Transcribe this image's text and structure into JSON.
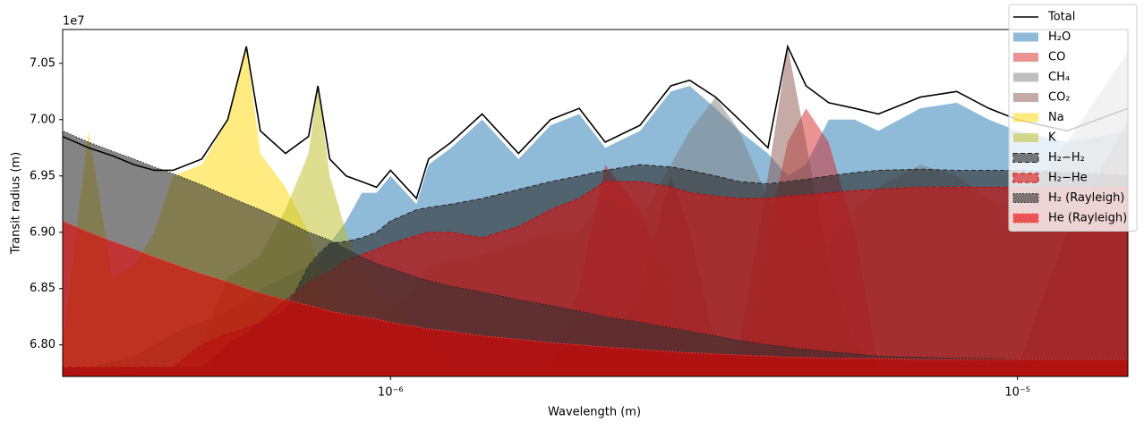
{
  "chart_data": {
    "type": "area",
    "xscale": "log",
    "xlabel": "Wavelength (m)",
    "ylabel": "Transit radius (m)",
    "y_offset_label": "1e7",
    "legend": "upper right",
    "xlim": [
      3e-07,
      1.5e-05
    ],
    "ylim": [
      67720000,
      70800000
    ],
    "xticks": [
      {
        "value": 1e-06,
        "label": "10⁻⁶"
      },
      {
        "value": 1e-05,
        "label": "10⁻⁵"
      }
    ],
    "yticks": [
      {
        "value": 68000000,
        "label": "6.80"
      },
      {
        "value": 68500000,
        "label": "6.85"
      },
      {
        "value": 69000000,
        "label": "6.90"
      },
      {
        "value": 69500000,
        "label": "6.95"
      },
      {
        "value": 70000000,
        "label": "7.00"
      },
      {
        "value": 70500000,
        "label": "7.05"
      }
    ],
    "x": [
      3e-07,
      3.3e-07,
      3.6e-07,
      3.9e-07,
      4.2e-07,
      4.5e-07,
      5e-07,
      5.5e-07,
      5.89e-07,
      6.2e-07,
      6.8e-07,
      7.4e-07,
      7.66e-07,
      8e-07,
      8.5e-07,
      9e-07,
      9.5e-07,
      1e-06,
      1.1e-06,
      1.15e-06,
      1.25e-06,
      1.4e-06,
      1.6e-06,
      1.8e-06,
      2e-06,
      2.2e-06,
      2.5e-06,
      2.8e-06,
      3e-06,
      3.3e-06,
      3.6e-06,
      4e-06,
      4.3e-06,
      4.6e-06,
      5e-06,
      5.5e-06,
      6e-06,
      7e-06,
      8e-06,
      9e-06,
      1e-05,
      1.2e-05,
      1.5e-05
    ],
    "series": [
      {
        "name": "Total",
        "type": "line",
        "color": "#000000",
        "values": [
          69850000,
          69750000,
          69680000,
          69600000,
          69550000,
          69550000,
          69650000,
          70000000,
          70650000,
          69900000,
          69700000,
          69850000,
          70300000,
          69650000,
          69500000,
          69450000,
          69400000,
          69550000,
          69300000,
          69650000,
          69800000,
          70050000,
          69700000,
          70000000,
          70100000,
          69800000,
          69950000,
          70300000,
          70350000,
          70200000,
          70000000,
          69750000,
          70650000,
          70300000,
          70150000,
          70100000,
          70050000,
          70200000,
          70250000,
          70100000,
          70000000,
          69900000,
          70100000
        ]
      },
      {
        "name": "H₂O",
        "type": "area",
        "color": "rgba(31,119,180,0.5)",
        "values": [
          67800000,
          67800000,
          67850000,
          67900000,
          68000000,
          68100000,
          68200000,
          68300000,
          68400000,
          68500000,
          68600000,
          68700000,
          68750000,
          68900000,
          69100000,
          69350000,
          69350000,
          69500000,
          69250000,
          69600000,
          69750000,
          70000000,
          69650000,
          69950000,
          70050000,
          69750000,
          69900000,
          70250000,
          70300000,
          70100000,
          69900000,
          69700000,
          69500000,
          69600000,
          70000000,
          70000000,
          69900000,
          70100000,
          70150000,
          70000000,
          69900000,
          69800000,
          69900000
        ]
      },
      {
        "name": "CO",
        "type": "area",
        "color": "rgba(214,39,40,0.5)",
        "values": [
          67800000,
          67800000,
          67800000,
          67800000,
          67800000,
          67800000,
          67800000,
          67800000,
          67800000,
          67800000,
          67800000,
          67800000,
          67800000,
          67800000,
          67800000,
          67800000,
          67800000,
          67800000,
          67800000,
          67800000,
          67800000,
          67800000,
          67800000,
          67800000,
          68500000,
          69600000,
          69200000,
          68500000,
          67800000,
          67800000,
          67800000,
          69000000,
          69800000,
          70100000,
          69800000,
          69000000,
          67800000,
          67800000,
          67800000,
          67800000,
          67800000,
          67800000,
          67800000
        ]
      },
      {
        "name": "CH₄",
        "type": "area",
        "color": "rgba(127,127,127,0.5)",
        "values": [
          67800000,
          67800000,
          67800000,
          67800000,
          67800000,
          67800000,
          67800000,
          67800000,
          67800000,
          67800000,
          67800000,
          67800000,
          67800000,
          67800000,
          68000000,
          68200000,
          68250000,
          68300000,
          68500000,
          68700000,
          68750000,
          68800000,
          68900000,
          69000000,
          69000000,
          69300000,
          69100000,
          69600000,
          69900000,
          70200000,
          69900000,
          69300000,
          69000000,
          68800000,
          68900000,
          69200000,
          69400000,
          69600000,
          69500000,
          69300000,
          69200000,
          69800000,
          70600000
        ]
      },
      {
        "name": "CO₂",
        "type": "area",
        "color": "rgba(140,86,75,0.5)",
        "values": [
          67800000,
          67800000,
          67800000,
          67800000,
          67800000,
          67800000,
          67800000,
          67800000,
          67800000,
          67800000,
          67800000,
          67800000,
          67800000,
          67800000,
          67800000,
          67800000,
          67800000,
          67800000,
          67800000,
          67800000,
          67800000,
          67800000,
          67800000,
          67800000,
          67800000,
          67800000,
          68500000,
          69500000,
          69000000,
          68000000,
          68000000,
          69500000,
          70650000,
          69800000,
          68700000,
          68000000,
          67800000,
          67800000,
          67800000,
          67800000,
          67800000,
          69000000,
          70000000
        ]
      },
      {
        "name": "Na",
        "type": "area",
        "color": "rgba(255,215,0,0.5)",
        "values": [
          68000000,
          69900000,
          68600000,
          68700000,
          69000000,
          69500000,
          69600000,
          70000000,
          70650000,
          69700000,
          69400000,
          69000000,
          68700000,
          68400000,
          68100000,
          67800000,
          67800000,
          67800000,
          67800000,
          67800000,
          67800000,
          67800000,
          67800000,
          67800000,
          67800000,
          67800000,
          67800000,
          67800000,
          67800000,
          67800000,
          67800000,
          67800000,
          67800000,
          67800000,
          67800000,
          67800000,
          67800000,
          67800000,
          67800000,
          67800000,
          67800000,
          67800000,
          67800000
        ]
      },
      {
        "name": "K",
        "type": "area",
        "color": "rgba(188,189,34,0.5)",
        "values": [
          67800000,
          67800000,
          67800000,
          67800000,
          67800000,
          67800000,
          68000000,
          68600000,
          68700000,
          68800000,
          69200000,
          69700000,
          70300000,
          69500000,
          69000000,
          68600000,
          68500000,
          68400000,
          68200000,
          68000000,
          67800000,
          67800000,
          67800000,
          67800000,
          67800000,
          67800000,
          67800000,
          67800000,
          67800000,
          67800000,
          67800000,
          67800000,
          67800000,
          67800000,
          67800000,
          67800000,
          67800000,
          67800000,
          67800000,
          67800000,
          67800000,
          67800000,
          67800000
        ]
      },
      {
        "name": "H₂−H₂",
        "type": "area",
        "color": "rgba(40,40,40,0.6)",
        "edgecolor": "#222222",
        "linestyle": "dashed",
        "values": [
          67800000,
          67800000,
          67800000,
          67800000,
          67800000,
          67800000,
          67800000,
          68000000,
          68100000,
          68200000,
          68300000,
          68700000,
          68800000,
          68900000,
          68920000,
          68950000,
          69000000,
          69100000,
          69200000,
          69220000,
          69250000,
          69300000,
          69380000,
          69450000,
          69500000,
          69550000,
          69600000,
          69580000,
          69550000,
          69500000,
          69450000,
          69430000,
          69450000,
          69470000,
          69500000,
          69530000,
          69550000,
          69560000,
          69550000,
          69550000,
          69550000,
          69530000,
          69500000
        ]
      },
      {
        "name": "H₂−He",
        "type": "area",
        "color": "rgba(220,20,20,0.6)",
        "edgecolor": "#cc0000",
        "linestyle": "dashed",
        "values": [
          67800000,
          67800000,
          67800000,
          67800000,
          67800000,
          67800000,
          68000000,
          68100000,
          68150000,
          68200000,
          68400000,
          68550000,
          68600000,
          68650000,
          68750000,
          68800000,
          68850000,
          68900000,
          68970000,
          69000000,
          69000000,
          68950000,
          69050000,
          69200000,
          69300000,
          69450000,
          69450000,
          69400000,
          69350000,
          69320000,
          69300000,
          69300000,
          69320000,
          69330000,
          69350000,
          69370000,
          69380000,
          69400000,
          69400000,
          69400000,
          69400000,
          69400000,
          69400000
        ]
      },
      {
        "name": "H₂ (Rayleigh)",
        "type": "area",
        "color": "rgba(50,50,50,0.6)",
        "edgecolor": "#222222",
        "linestyle": "dotted",
        "values": [
          69900000,
          69800000,
          69720000,
          69650000,
          69580000,
          69520000,
          69420000,
          69320000,
          69250000,
          69200000,
          69100000,
          69000000,
          68970000,
          68930000,
          68850000,
          68780000,
          68720000,
          68680000,
          68600000,
          68570000,
          68520000,
          68470000,
          68400000,
          68350000,
          68300000,
          68250000,
          68200000,
          68150000,
          68120000,
          68080000,
          68040000,
          68000000,
          67980000,
          67960000,
          67940000,
          67920000,
          67900000,
          67890000,
          67880000,
          67880000,
          67870000,
          67870000,
          67870000
        ]
      },
      {
        "name": "He (Rayleigh)",
        "type": "area",
        "color": "rgba(230,0,0,0.6)",
        "edgecolor": "#ff4444",
        "linestyle": "dotted",
        "values": [
          69100000,
          69000000,
          68920000,
          68850000,
          68780000,
          68720000,
          68630000,
          68560000,
          68500000,
          68460000,
          68400000,
          68350000,
          68330000,
          68300000,
          68270000,
          68250000,
          68230000,
          68200000,
          68160000,
          68140000,
          68120000,
          68080000,
          68050000,
          68020000,
          68000000,
          67980000,
          67960000,
          67940000,
          67930000,
          67920000,
          67910000,
          67900000,
          67890000,
          67890000,
          67880000,
          67880000,
          67880000,
          67870000,
          67870000,
          67870000,
          67870000,
          67870000,
          67870000
        ]
      }
    ]
  }
}
